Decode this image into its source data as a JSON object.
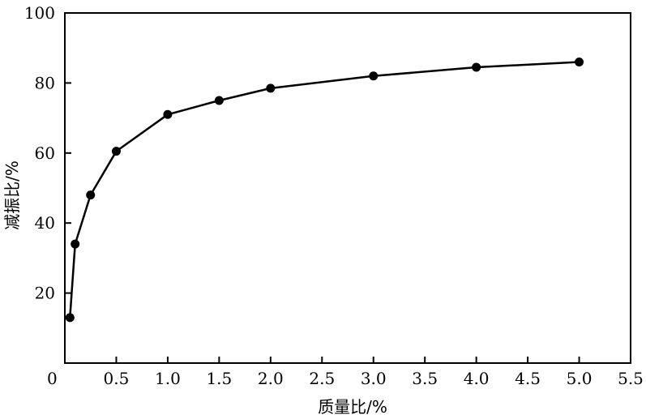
{
  "chart_data": {
    "type": "line",
    "xlabel": "质量比/%",
    "ylabel": "减振比/%",
    "xlim": [
      0,
      5.5
    ],
    "ylim": [
      0,
      100
    ],
    "x_ticks": [
      "0",
      "0.5",
      "1.0",
      "1.5",
      "2.0",
      "2.5",
      "3.0",
      "3.5",
      "4.0",
      "4.5",
      "5.0",
      "5.5"
    ],
    "y_ticks": [
      "20",
      "40",
      "60",
      "80",
      "100"
    ],
    "grid": false,
    "series": [
      {
        "x": [
          0.05,
          0.1,
          0.25,
          0.5,
          1.0,
          1.5,
          2.0,
          3.0,
          4.0,
          5.0
        ],
        "y": [
          13,
          34,
          48,
          60.5,
          71,
          75,
          78.5,
          82,
          84.5,
          86
        ]
      }
    ],
    "colors": {
      "line": "#000000",
      "marker": "#000000"
    }
  }
}
